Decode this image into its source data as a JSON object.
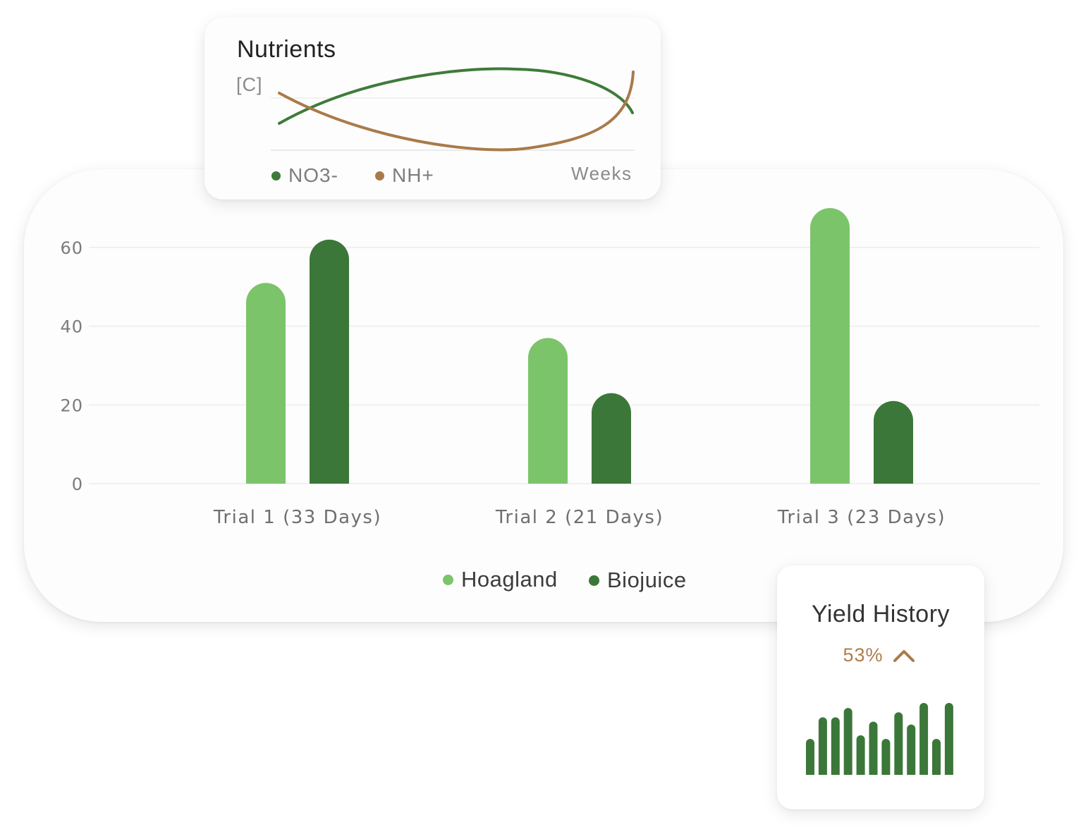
{
  "colors": {
    "hoagland": "#7cc46a",
    "biojuice": "#3b7739",
    "no3": "#3e7b3a",
    "nh": "#a97a4a",
    "yield_bar": "#3b7739",
    "accent": "#b07d4a"
  },
  "chart_data": [
    {
      "type": "bar",
      "categories": [
        "Trial 1 (33 Days)",
        "Trial 2 (21 Days)",
        "Trial 3 (23 Days)"
      ],
      "series": [
        {
          "name": "Hoagland",
          "values": [
            51,
            37,
            70
          ]
        },
        {
          "name": "Biojuice",
          "values": [
            62,
            23,
            21
          ]
        }
      ],
      "yticks": [
        "0",
        "20",
        "40",
        "60"
      ],
      "ylim": [
        0,
        60
      ],
      "grid": true,
      "legend_position": "bottom-center"
    },
    {
      "type": "line",
      "title": "Nutrients",
      "ylabel": "[C]",
      "xlabel": "Weeks",
      "series": [
        {
          "name": "NO3-",
          "trend": "rises, peaks in late middle, then falls"
        },
        {
          "name": "NH+",
          "trend": "falls, bottoms in middle, then rises sharply at end"
        }
      ],
      "legend_position": "bottom-left"
    },
    {
      "type": "bar",
      "title": "Yield History",
      "change": "53%",
      "change_direction": "up",
      "values": [
        50,
        80,
        80,
        93,
        55,
        74,
        50,
        87,
        70,
        100,
        50,
        100
      ]
    }
  ]
}
